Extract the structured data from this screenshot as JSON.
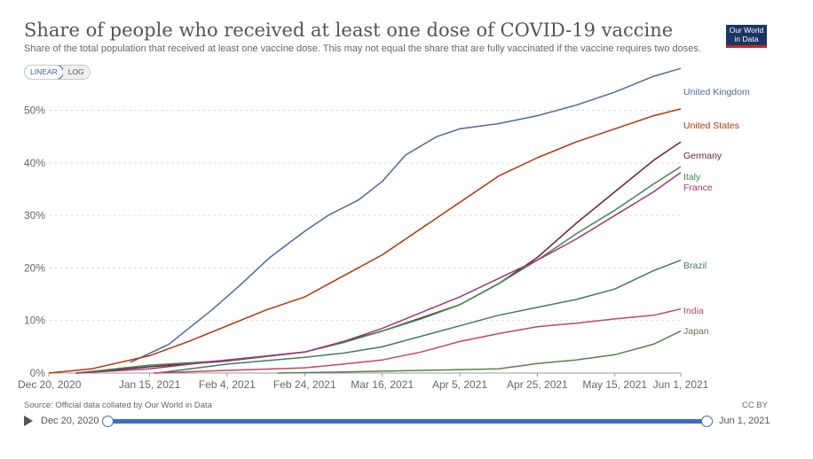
{
  "header": {
    "title": "Share of people who received at least one dose of COVID-19 vaccine",
    "subtitle": "Share of the total population that received at least one vaccine dose. This may not equal the share that are fully vaccinated if the vaccine requires two doses.",
    "logo_line1": "Our World",
    "logo_line2": "in Data",
    "logo_color": "#1a3664",
    "logo_accent": "#ce261e"
  },
  "controls": {
    "linear_label": "LINEAR",
    "log_label": "LOG",
    "active_scale": "LINEAR"
  },
  "footer": {
    "source": "Source: Official data collated by Our World in Data",
    "license": "CC BY"
  },
  "timeline": {
    "start_label": "Dec 20, 2020",
    "end_label": "Jun 1, 2021",
    "accent": "#3c6bbd"
  },
  "chart_data": {
    "type": "line",
    "x_axis": {
      "min": "2020-12-20",
      "max": "2021-06-01",
      "ticks": [
        {
          "date": "2020-12-20",
          "label": "Dec 20, 2020"
        },
        {
          "date": "2021-01-15",
          "label": "Jan 15, 2021"
        },
        {
          "date": "2021-02-04",
          "label": "Feb 4, 2021"
        },
        {
          "date": "2021-02-24",
          "label": "Feb 24, 2021"
        },
        {
          "date": "2021-03-16",
          "label": "Mar 16, 2021"
        },
        {
          "date": "2021-04-05",
          "label": "Apr 5, 2021"
        },
        {
          "date": "2021-04-25",
          "label": "Apr 25, 2021"
        },
        {
          "date": "2021-05-15",
          "label": "May 15, 2021"
        },
        {
          "date": "2021-06-01",
          "label": "Jun 1, 2021"
        }
      ]
    },
    "y_axis": {
      "min": 0,
      "max": 55,
      "ticks": [
        0,
        10,
        20,
        30,
        40,
        50
      ],
      "tick_suffix": "%",
      "grid": true
    },
    "legend": "right-end labels",
    "series": [
      {
        "name": "United Kingdom",
        "color": "#4c6a9c",
        "points": [
          [
            "2021-01-10",
            2.0
          ],
          [
            "2021-01-20",
            5.5
          ],
          [
            "2021-01-31",
            12.0
          ],
          [
            "2021-02-07",
            16.5
          ],
          [
            "2021-02-15",
            22.0
          ],
          [
            "2021-02-24",
            27.0
          ],
          [
            "2021-03-02",
            30.0
          ],
          [
            "2021-03-10",
            33.0
          ],
          [
            "2021-03-16",
            36.5
          ],
          [
            "2021-03-22",
            41.5
          ],
          [
            "2021-03-30",
            45.0
          ],
          [
            "2021-04-05",
            46.5
          ],
          [
            "2021-04-15",
            47.5
          ],
          [
            "2021-04-25",
            49.0
          ],
          [
            "2021-05-05",
            51.0
          ],
          [
            "2021-05-15",
            53.5
          ],
          [
            "2021-05-25",
            56.5
          ],
          [
            "2021-06-01",
            58.0
          ]
        ]
      },
      {
        "name": "United States",
        "color": "#b13507",
        "points": [
          [
            "2020-12-20",
            0.0
          ],
          [
            "2020-12-31",
            0.8
          ],
          [
            "2021-01-15",
            3.3
          ],
          [
            "2021-01-25",
            6.0
          ],
          [
            "2021-02-04",
            9.0
          ],
          [
            "2021-02-14",
            12.0
          ],
          [
            "2021-02-24",
            14.5
          ],
          [
            "2021-03-06",
            18.5
          ],
          [
            "2021-03-16",
            22.5
          ],
          [
            "2021-03-26",
            27.5
          ],
          [
            "2021-04-05",
            32.5
          ],
          [
            "2021-04-15",
            37.5
          ],
          [
            "2021-04-25",
            41.0
          ],
          [
            "2021-05-05",
            44.0
          ],
          [
            "2021-05-15",
            46.5
          ],
          [
            "2021-05-25",
            49.0
          ],
          [
            "2021-06-01",
            50.3
          ]
        ]
      },
      {
        "name": "Germany",
        "color": "#6d1e3c",
        "points": [
          [
            "2020-12-27",
            0.0
          ],
          [
            "2021-01-15",
            1.2
          ],
          [
            "2021-02-04",
            2.3
          ],
          [
            "2021-02-24",
            4.0
          ],
          [
            "2021-03-06",
            6.0
          ],
          [
            "2021-03-16",
            8.0
          ],
          [
            "2021-03-26",
            10.5
          ],
          [
            "2021-04-05",
            13.0
          ],
          [
            "2021-04-15",
            17.0
          ],
          [
            "2021-04-25",
            22.0
          ],
          [
            "2021-05-05",
            28.5
          ],
          [
            "2021-05-15",
            34.5
          ],
          [
            "2021-05-25",
            40.5
          ],
          [
            "2021-06-01",
            44.0
          ]
        ]
      },
      {
        "name": "Italy",
        "color": "#3f8a48",
        "points": [
          [
            "2020-12-27",
            0.0
          ],
          [
            "2021-01-15",
            1.5
          ],
          [
            "2021-02-04",
            2.4
          ],
          [
            "2021-02-24",
            4.0
          ],
          [
            "2021-03-06",
            5.8
          ],
          [
            "2021-03-16",
            8.0
          ],
          [
            "2021-03-26",
            10.3
          ],
          [
            "2021-04-05",
            13.0
          ],
          [
            "2021-04-15",
            17.0
          ],
          [
            "2021-04-25",
            21.5
          ],
          [
            "2021-05-05",
            26.5
          ],
          [
            "2021-05-15",
            31.0
          ],
          [
            "2021-05-25",
            36.0
          ],
          [
            "2021-06-01",
            39.3
          ]
        ]
      },
      {
        "name": "France",
        "color": "#a2357a",
        "points": [
          [
            "2020-12-27",
            0.0
          ],
          [
            "2021-01-15",
            0.8
          ],
          [
            "2021-02-04",
            2.5
          ],
          [
            "2021-02-24",
            4.0
          ],
          [
            "2021-03-06",
            6.0
          ],
          [
            "2021-03-16",
            8.5
          ],
          [
            "2021-03-26",
            11.5
          ],
          [
            "2021-04-05",
            14.5
          ],
          [
            "2021-04-15",
            18.0
          ],
          [
            "2021-04-25",
            21.5
          ],
          [
            "2021-05-05",
            25.5
          ],
          [
            "2021-05-15",
            30.0
          ],
          [
            "2021-05-25",
            34.5
          ],
          [
            "2021-06-01",
            38.2
          ]
        ]
      },
      {
        "name": "Brazil",
        "color": "#3f7c5e",
        "points": [
          [
            "2021-01-17",
            0.0
          ],
          [
            "2021-02-04",
            1.7
          ],
          [
            "2021-02-24",
            3.0
          ],
          [
            "2021-03-06",
            3.8
          ],
          [
            "2021-03-16",
            5.0
          ],
          [
            "2021-03-26",
            7.0
          ],
          [
            "2021-04-05",
            9.0
          ],
          [
            "2021-04-15",
            11.0
          ],
          [
            "2021-04-25",
            12.5
          ],
          [
            "2021-05-05",
            14.0
          ],
          [
            "2021-05-15",
            16.0
          ],
          [
            "2021-05-25",
            19.5
          ],
          [
            "2021-06-01",
            21.5
          ]
        ]
      },
      {
        "name": "India",
        "color": "#c4455d",
        "points": [
          [
            "2021-01-16",
            0.0
          ],
          [
            "2021-02-04",
            0.5
          ],
          [
            "2021-02-24",
            1.0
          ],
          [
            "2021-03-06",
            1.7
          ],
          [
            "2021-03-16",
            2.5
          ],
          [
            "2021-03-26",
            4.0
          ],
          [
            "2021-04-05",
            6.0
          ],
          [
            "2021-04-15",
            7.5
          ],
          [
            "2021-04-25",
            8.8
          ],
          [
            "2021-05-05",
            9.5
          ],
          [
            "2021-05-15",
            10.3
          ],
          [
            "2021-05-25",
            11.0
          ],
          [
            "2021-06-01",
            12.2
          ]
        ]
      },
      {
        "name": "Japan",
        "color": "#578145",
        "points": [
          [
            "2021-02-17",
            0.0
          ],
          [
            "2021-03-06",
            0.2
          ],
          [
            "2021-03-26",
            0.5
          ],
          [
            "2021-04-15",
            0.8
          ],
          [
            "2021-04-25",
            1.8
          ],
          [
            "2021-05-05",
            2.5
          ],
          [
            "2021-05-15",
            3.5
          ],
          [
            "2021-05-25",
            5.5
          ],
          [
            "2021-06-01",
            8.0
          ]
        ]
      }
    ]
  }
}
